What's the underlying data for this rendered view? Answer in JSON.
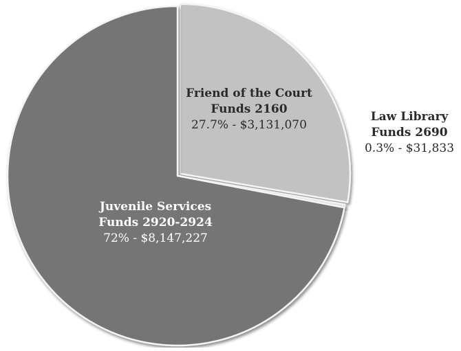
{
  "chart_data": {
    "type": "pie",
    "style": "3d-shaded",
    "start_angle_deg": -90,
    "direction": "clockwise",
    "slices": [
      {
        "name_lines": [
          "Friend of the Court",
          "Funds 2160"
        ],
        "value_label": "27.7% - $3,131,070",
        "percent": 27.7,
        "value": 3131070,
        "color": "#c2c2c2",
        "exploded": true,
        "label_placement": "inside",
        "label_color": "#2a2a2a"
      },
      {
        "name_lines": [
          "Law Library",
          "Funds 2690"
        ],
        "value_label": "0.3% - $31,833",
        "percent": 0.3,
        "value": 31833,
        "color": "#e8e8e8",
        "exploded": false,
        "label_placement": "outside",
        "label_color": "#2a2a2a"
      },
      {
        "name_lines": [
          "Juvenile Services",
          "Funds 2920-2924"
        ],
        "value_label": "72% - $8,147,227",
        "percent": 72,
        "value": 8147227,
        "color": "#757575",
        "exploded": false,
        "label_placement": "inside",
        "label_color": "#ffffff"
      }
    ]
  }
}
